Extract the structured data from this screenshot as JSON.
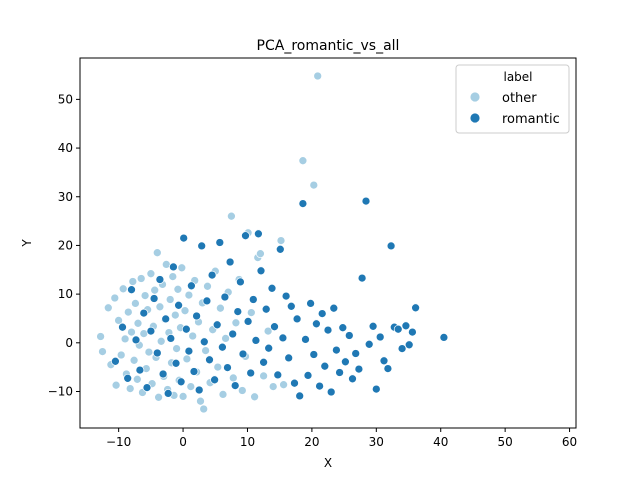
{
  "chart_data": {
    "type": "scatter",
    "title": "PCA_romantic_vs_all",
    "xlabel": "X",
    "ylabel": "Y",
    "xlim": [
      -16,
      61
    ],
    "ylim": [
      -17.5,
      58.5
    ],
    "xticks": [
      -10,
      0,
      10,
      20,
      30,
      40,
      50,
      60
    ],
    "yticks": [
      -10,
      0,
      10,
      20,
      30,
      40,
      50
    ],
    "grid": false,
    "legend": {
      "title": "label",
      "placement": "top-right",
      "entries": [
        "other",
        "romantic"
      ]
    },
    "series": [
      {
        "name": "other",
        "color": "#a6cee3",
        "points": [
          [
            -12.8,
            1.3
          ],
          [
            -12.5,
            -1.8
          ],
          [
            -11.6,
            7.2
          ],
          [
            -11.2,
            -4.5
          ],
          [
            -10.6,
            9.2
          ],
          [
            -10.4,
            -8.7
          ],
          [
            -10.0,
            4.6
          ],
          [
            -9.6,
            -2.5
          ],
          [
            -9.3,
            11.1
          ],
          [
            -9.0,
            0.8
          ],
          [
            -8.8,
            -6.4
          ],
          [
            -8.5,
            6.3
          ],
          [
            -8.2,
            -9.4
          ],
          [
            -8.0,
            2.2
          ],
          [
            -7.8,
            12.6
          ],
          [
            -7.6,
            -3.6
          ],
          [
            -7.4,
            8.1
          ],
          [
            -7.1,
            -7.5
          ],
          [
            -7.0,
            4.0
          ],
          [
            -6.8,
            -0.5
          ],
          [
            -6.5,
            13.2
          ],
          [
            -6.3,
            -10.2
          ],
          [
            -6.1,
            1.9
          ],
          [
            -5.9,
            9.7
          ],
          [
            -5.7,
            -5.3
          ],
          [
            -5.5,
            6.8
          ],
          [
            -5.3,
            -1.9
          ],
          [
            -5.0,
            14.2
          ],
          [
            -4.8,
            -8.4
          ],
          [
            -4.6,
            3.4
          ],
          [
            -4.4,
            10.8
          ],
          [
            -4.2,
            -3.0
          ],
          [
            -4.0,
            18.5
          ],
          [
            -3.8,
            -11.2
          ],
          [
            -3.6,
            7.4
          ],
          [
            -3.4,
            0.3
          ],
          [
            -3.2,
            12.0
          ],
          [
            -3.0,
            -6.9
          ],
          [
            -2.8,
            4.8
          ],
          [
            -2.6,
            16.1
          ],
          [
            -2.4,
            -9.6
          ],
          [
            -2.2,
            2.1
          ],
          [
            -2.0,
            8.9
          ],
          [
            -1.8,
            -4.1
          ],
          [
            -1.6,
            13.6
          ],
          [
            -1.4,
            -10.8
          ],
          [
            -1.2,
            5.7
          ],
          [
            -1.0,
            -1.2
          ],
          [
            -0.8,
            11.0
          ],
          [
            -0.6,
            -7.7
          ],
          [
            -0.4,
            3.1
          ],
          [
            -0.2,
            15.4
          ],
          [
            0.0,
            -11.0
          ],
          [
            0.3,
            6.6
          ],
          [
            0.6,
            -3.3
          ],
          [
            0.9,
            9.8
          ],
          [
            1.2,
            -9.0
          ],
          [
            1.5,
            1.4
          ],
          [
            1.8,
            12.8
          ],
          [
            2.1,
            -6.0
          ],
          [
            2.4,
            4.3
          ],
          [
            2.7,
            -12.0
          ],
          [
            3.0,
            8.2
          ],
          [
            3.2,
            -13.6
          ],
          [
            3.5,
            -1.6
          ],
          [
            3.8,
            11.6
          ],
          [
            4.2,
            -8.2
          ],
          [
            4.6,
            2.7
          ],
          [
            5.0,
            14.7
          ],
          [
            5.4,
            -5.0
          ],
          [
            5.8,
            7.1
          ],
          [
            6.2,
            -10.6
          ],
          [
            6.6,
            0.9
          ],
          [
            7.0,
            10.4
          ],
          [
            7.5,
            26.0
          ],
          [
            7.8,
            -7.2
          ],
          [
            8.2,
            4.1
          ],
          [
            8.7,
            13.0
          ],
          [
            9.2,
            -9.8
          ],
          [
            9.7,
            -2.8
          ],
          [
            10.1,
            22.6
          ],
          [
            10.6,
            6.2
          ],
          [
            11.1,
            -11.1
          ],
          [
            11.6,
            17.5
          ],
          [
            12.0,
            18.3
          ],
          [
            12.5,
            -6.8
          ],
          [
            13.2,
            2.4
          ],
          [
            14.0,
            -9.0
          ],
          [
            15.2,
            21.0
          ],
          [
            15.6,
            -8.6
          ],
          [
            18.6,
            37.4
          ],
          [
            20.3,
            32.4
          ],
          [
            20.9,
            54.8
          ]
        ]
      },
      {
        "name": "romantic",
        "color": "#1f78b4",
        "points": [
          [
            -10.5,
            -3.8
          ],
          [
            -9.4,
            3.2
          ],
          [
            -8.6,
            -7.3
          ],
          [
            -8.0,
            10.9
          ],
          [
            -7.3,
            0.6
          ],
          [
            -6.7,
            -5.6
          ],
          [
            -6.1,
            6.1
          ],
          [
            -5.6,
            -9.2
          ],
          [
            -5.0,
            2.4
          ],
          [
            -4.5,
            9.1
          ],
          [
            -4.0,
            -2.1
          ],
          [
            -3.6,
            13.0
          ],
          [
            -3.1,
            -6.4
          ],
          [
            -2.7,
            4.9
          ],
          [
            -2.3,
            -10.4
          ],
          [
            -1.9,
            0.9
          ],
          [
            -1.5,
            15.6
          ],
          [
            -1.1,
            -4.2
          ],
          [
            -0.7,
            7.7
          ],
          [
            -0.3,
            -8.0
          ],
          [
            0.1,
            21.5
          ],
          [
            0.5,
            2.8
          ],
          [
            0.9,
            -1.7
          ],
          [
            1.3,
            11.7
          ],
          [
            1.7,
            -5.9
          ],
          [
            2.1,
            5.5
          ],
          [
            2.5,
            -9.7
          ],
          [
            2.9,
            19.9
          ],
          [
            3.3,
            0.2
          ],
          [
            3.7,
            8.6
          ],
          [
            4.1,
            -3.5
          ],
          [
            4.5,
            13.9
          ],
          [
            4.9,
            -7.6
          ],
          [
            5.3,
            3.7
          ],
          [
            5.7,
            20.6
          ],
          [
            6.1,
            -0.9
          ],
          [
            6.5,
            9.4
          ],
          [
            6.9,
            -5.1
          ],
          [
            7.3,
            16.6
          ],
          [
            7.7,
            1.8
          ],
          [
            8.1,
            -8.8
          ],
          [
            8.5,
            6.4
          ],
          [
            8.9,
            12.5
          ],
          [
            9.3,
            -2.3
          ],
          [
            9.7,
            22.0
          ],
          [
            10.1,
            4.4
          ],
          [
            10.5,
            -6.2
          ],
          [
            10.9,
            8.9
          ],
          [
            11.3,
            0.5
          ],
          [
            11.7,
            22.4
          ],
          [
            12.1,
            14.8
          ],
          [
            12.5,
            -4.0
          ],
          [
            12.9,
            6.9
          ],
          [
            13.3,
            -1.1
          ],
          [
            13.8,
            11.2
          ],
          [
            14.2,
            3.3
          ],
          [
            14.7,
            -6.6
          ],
          [
            15.1,
            19.2
          ],
          [
            15.5,
            1.0
          ],
          [
            16.0,
            9.6
          ],
          [
            16.4,
            -3.1
          ],
          [
            16.8,
            7.5
          ],
          [
            17.3,
            -8.3
          ],
          [
            17.7,
            4.9
          ],
          [
            18.1,
            -10.9
          ],
          [
            18.6,
            28.6
          ],
          [
            19.0,
            0.7
          ],
          [
            19.4,
            -6.7
          ],
          [
            19.8,
            8.1
          ],
          [
            20.3,
            -2.4
          ],
          [
            20.7,
            3.9
          ],
          [
            21.2,
            -8.9
          ],
          [
            21.6,
            6.0
          ],
          [
            22.0,
            -4.8
          ],
          [
            22.5,
            2.6
          ],
          [
            23.0,
            -10.1
          ],
          [
            23.4,
            7.1
          ],
          [
            23.8,
            -1.5
          ],
          [
            24.3,
            -6.1
          ],
          [
            24.8,
            3.1
          ],
          [
            25.2,
            -3.9
          ],
          [
            25.8,
            1.5
          ],
          [
            26.3,
            -7.4
          ],
          [
            26.8,
            -2.2
          ],
          [
            27.3,
            -5.4
          ],
          [
            27.8,
            13.3
          ],
          [
            28.4,
            29.1
          ],
          [
            28.9,
            -0.3
          ],
          [
            29.5,
            3.4
          ],
          [
            30.0,
            -9.5
          ],
          [
            30.6,
            1.2
          ],
          [
            31.2,
            -3.7
          ],
          [
            31.8,
            -5.3
          ],
          [
            32.3,
            19.9
          ],
          [
            32.8,
            3.2
          ],
          [
            33.4,
            2.8
          ],
          [
            34.0,
            -1.2
          ],
          [
            34.6,
            3.5
          ],
          [
            35.1,
            -0.4
          ],
          [
            35.6,
            2.2
          ],
          [
            36.1,
            7.2
          ],
          [
            40.5,
            1.1
          ]
        ]
      }
    ]
  }
}
